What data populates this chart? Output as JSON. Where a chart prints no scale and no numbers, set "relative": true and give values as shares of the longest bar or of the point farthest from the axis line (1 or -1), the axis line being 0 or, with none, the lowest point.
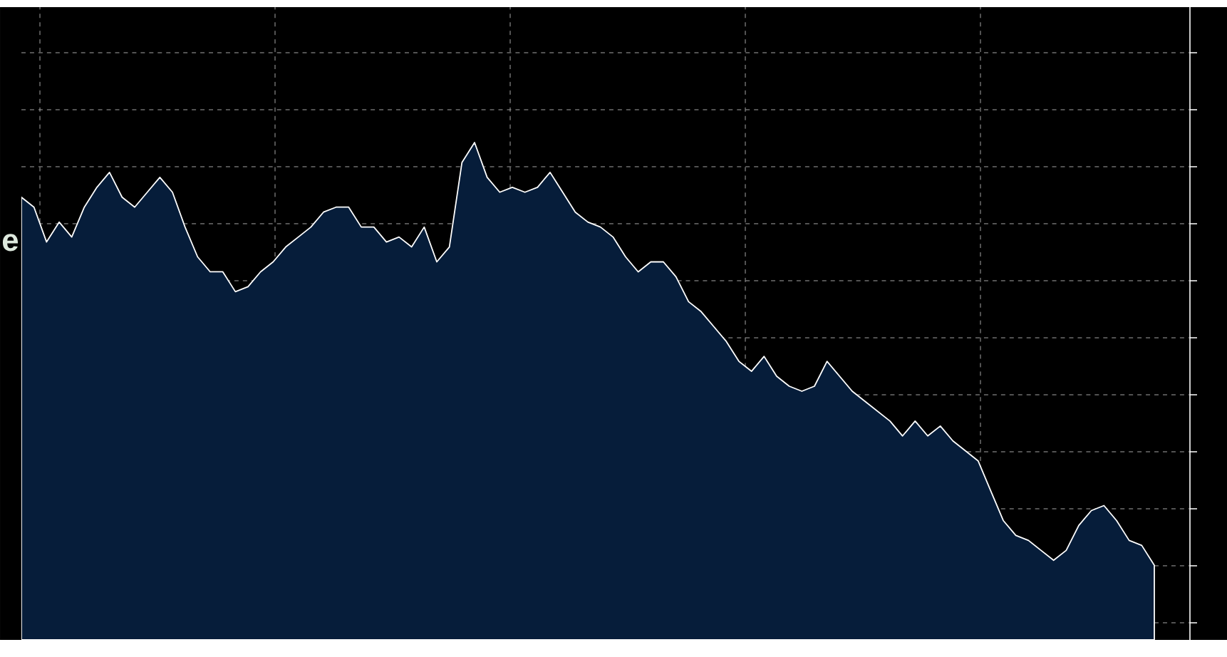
{
  "chart_data": {
    "type": "area",
    "relative": true,
    "grid": true,
    "tick_labels": false,
    "color": "#061d3a",
    "annotations": [
      "e"
    ],
    "categories": [
      null,
      null,
      null,
      null,
      null,
      null,
      null,
      null,
      null,
      null,
      null,
      null,
      null,
      null,
      null,
      null,
      null,
      null,
      null,
      null,
      null,
      null,
      null,
      null,
      null,
      null,
      null,
      null,
      null,
      null,
      null,
      null,
      null,
      null,
      null,
      null,
      null,
      null,
      null,
      null,
      null,
      null,
      null,
      null,
      null,
      null,
      null,
      null,
      null,
      null,
      null,
      null,
      null,
      null,
      null,
      null,
      null,
      null,
      null,
      null,
      null,
      null,
      null,
      null,
      null,
      null,
      null,
      null,
      null,
      null,
      null,
      null,
      null,
      null,
      null,
      null,
      null,
      null,
      null,
      null,
      null,
      null,
      null,
      null,
      null,
      null,
      null,
      null,
      null,
      null,
      null
    ],
    "values": [
      0.89,
      0.87,
      0.8,
      0.84,
      0.81,
      0.87,
      0.91,
      0.94,
      0.89,
      0.87,
      0.9,
      0.93,
      0.9,
      0.83,
      0.77,
      0.74,
      0.74,
      0.7,
      0.71,
      0.74,
      0.76,
      0.79,
      0.81,
      0.83,
      0.86,
      0.87,
      0.87,
      0.83,
      0.83,
      0.8,
      0.81,
      0.79,
      0.83,
      0.76,
      0.79,
      0.96,
      1,
      0.93,
      0.9,
      0.91,
      0.9,
      0.91,
      0.94,
      0.9,
      0.86,
      0.84,
      0.83,
      0.81,
      0.77,
      0.74,
      0.76,
      0.76,
      0.73,
      0.68,
      0.66,
      0.63,
      0.6,
      0.56,
      0.54,
      0.57,
      0.53,
      0.51,
      0.5,
      0.51,
      0.56,
      0.53,
      0.5,
      0.48,
      0.46,
      0.44,
      0.41,
      0.44,
      0.41,
      0.43,
      0.4,
      0.38,
      0.36,
      0.3,
      0.24,
      0.21,
      0.2,
      0.18,
      0.16,
      0.18,
      0.23,
      0.26,
      0.27,
      0.24,
      0.2,
      0.19,
      0.15
    ]
  }
}
